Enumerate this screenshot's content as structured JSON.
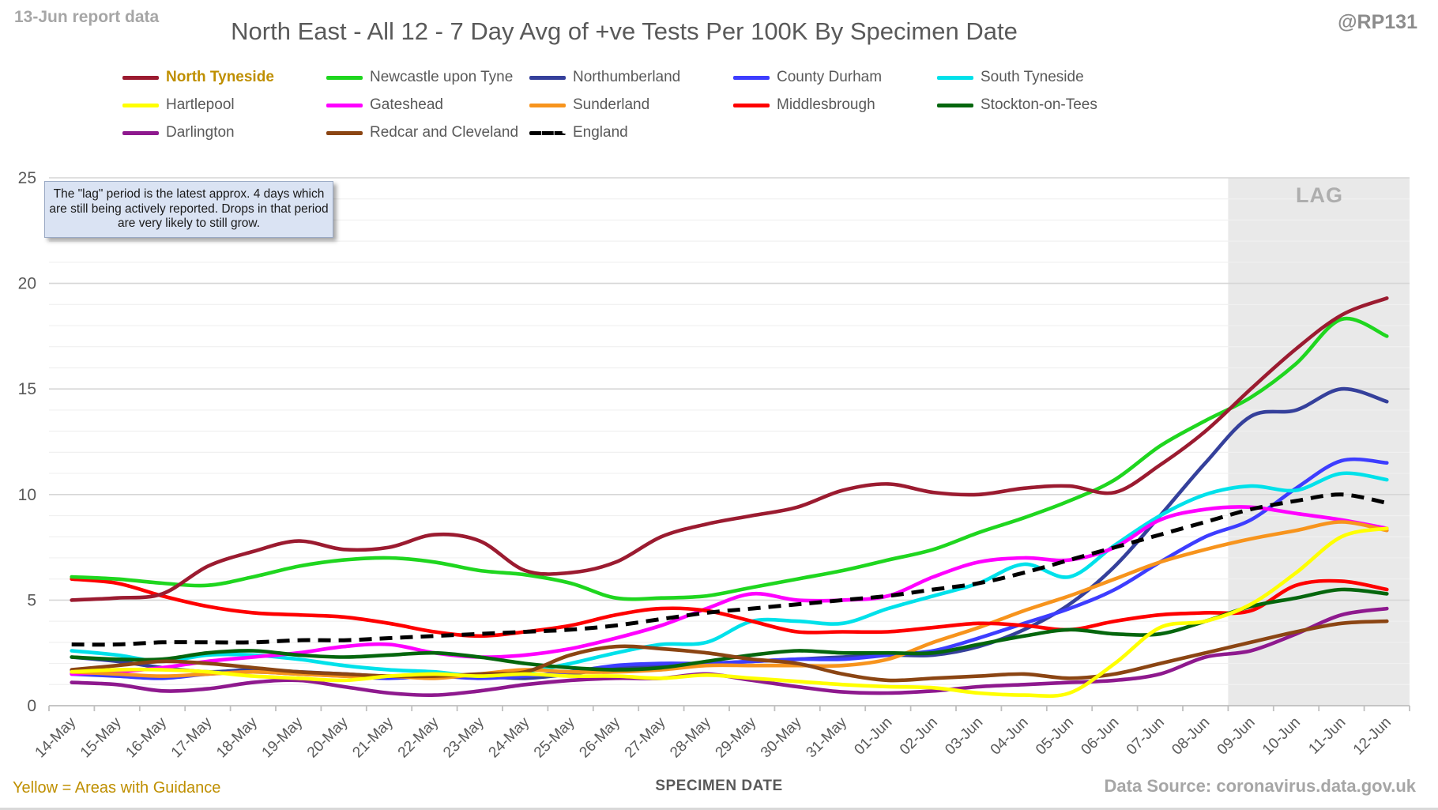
{
  "header": {
    "report_date_label": "13-Jun report data",
    "title": "North East - All 12 - 7 Day Avg of +ve Tests Per 100K By Specimen Date",
    "handle": "@RP131"
  },
  "annotation": {
    "text": "The \"lag\" period is the latest approx. 4 days which are still being actively reported. Drops in that period are very likely to still grow."
  },
  "lag": {
    "label": "LAG"
  },
  "footer": {
    "left_note": "Yellow = Areas with Guidance",
    "x_axis_title": "SPECIMEN DATE",
    "data_source": "Data Source: coronavirus.data.gov.uk"
  },
  "axes": {
    "y_ticks": [
      0,
      5,
      10,
      15,
      20,
      25
    ],
    "y_max": 25,
    "x_title": "SPECIMEN DATE"
  },
  "chart_data": {
    "type": "line",
    "title": "North East - All 12 - 7 Day Avg of +ve Tests Per 100K By Specimen Date",
    "xlabel": "SPECIMEN DATE",
    "ylabel": "",
    "ylim": [
      0,
      25
    ],
    "grid": "minor-1-major-5",
    "legend_position": "top",
    "lag_band": {
      "start_category": "09-Jun",
      "end": "plot-right-edge",
      "label": "LAG"
    },
    "categories": [
      "14-May",
      "15-May",
      "16-May",
      "17-May",
      "18-May",
      "19-May",
      "20-May",
      "21-May",
      "22-May",
      "23-May",
      "24-May",
      "25-May",
      "26-May",
      "27-May",
      "28-May",
      "29-May",
      "30-May",
      "31-May",
      "01-Jun",
      "02-Jun",
      "03-Jun",
      "04-Jun",
      "05-Jun",
      "06-Jun",
      "07-Jun",
      "08-Jun",
      "09-Jun",
      "10-Jun",
      "11-Jun",
      "12-Jun"
    ],
    "series": [
      {
        "name": "North Tyneside",
        "color": "#9b1b30",
        "dash": false,
        "highlight": true,
        "values": [
          5.0,
          5.1,
          5.3,
          6.6,
          7.3,
          7.8,
          7.4,
          7.5,
          8.1,
          7.8,
          6.4,
          6.3,
          6.8,
          8.0,
          8.6,
          9.0,
          9.4,
          10.2,
          10.5,
          10.1,
          10.0,
          10.3,
          10.4,
          10.1,
          11.4,
          13.0,
          15.0,
          16.9,
          18.5,
          19.3
        ]
      },
      {
        "name": "Newcastle upon Tyne",
        "color": "#1fd61f",
        "dash": false,
        "highlight": false,
        "values": [
          6.1,
          6.0,
          5.8,
          5.7,
          6.1,
          6.6,
          6.9,
          7.0,
          6.8,
          6.4,
          6.2,
          5.8,
          5.1,
          5.1,
          5.2,
          5.6,
          6.0,
          6.4,
          6.9,
          7.4,
          8.2,
          8.9,
          9.7,
          10.7,
          12.3,
          13.5,
          14.6,
          16.2,
          18.3,
          17.5
        ]
      },
      {
        "name": "Northumberland",
        "color": "#35409b",
        "dash": false,
        "highlight": false,
        "values": [
          2.3,
          2.1,
          1.8,
          1.6,
          1.7,
          1.6,
          1.5,
          1.4,
          1.5,
          1.4,
          1.3,
          1.5,
          1.8,
          1.9,
          2.0,
          2.1,
          2.2,
          2.3,
          2.4,
          2.4,
          2.8,
          3.6,
          4.8,
          6.6,
          9.0,
          11.5,
          13.7,
          14.0,
          15.0,
          14.4
        ]
      },
      {
        "name": "County Durham",
        "color": "#3d3dff",
        "dash": false,
        "highlight": false,
        "values": [
          1.5,
          1.4,
          1.3,
          1.5,
          1.6,
          1.5,
          1.4,
          1.3,
          1.4,
          1.3,
          1.4,
          1.6,
          1.9,
          2.0,
          2.0,
          2.1,
          2.2,
          2.2,
          2.4,
          2.6,
          3.2,
          3.9,
          4.6,
          5.5,
          6.8,
          8.0,
          8.8,
          10.3,
          11.6,
          11.5
        ]
      },
      {
        "name": "South Tyneside",
        "color": "#00e1ea",
        "dash": false,
        "highlight": false,
        "values": [
          2.6,
          2.4,
          2.1,
          2.4,
          2.4,
          2.2,
          1.9,
          1.7,
          1.6,
          1.4,
          1.6,
          2.0,
          2.5,
          2.9,
          3.0,
          4.0,
          4.0,
          3.9,
          4.6,
          5.2,
          5.8,
          6.7,
          6.1,
          7.6,
          9.0,
          10.0,
          10.4,
          10.2,
          11.0,
          10.7
        ]
      },
      {
        "name": "Hartlepool",
        "color": "#ffff00",
        "dash": false,
        "highlight": false,
        "values": [
          1.6,
          1.7,
          1.7,
          1.6,
          1.4,
          1.3,
          1.2,
          1.4,
          1.5,
          1.4,
          1.5,
          1.4,
          1.4,
          1.3,
          1.45,
          1.3,
          1.15,
          1.0,
          0.9,
          0.85,
          0.6,
          0.5,
          0.6,
          2.0,
          3.7,
          4.0,
          4.8,
          6.3,
          8.0,
          8.4
        ]
      },
      {
        "name": "Gateshead",
        "color": "#ff00ff",
        "dash": false,
        "highlight": false,
        "values": [
          1.5,
          1.6,
          1.8,
          2.1,
          2.3,
          2.5,
          2.8,
          2.9,
          2.5,
          2.3,
          2.4,
          2.7,
          3.2,
          3.8,
          4.6,
          5.3,
          5.0,
          5.0,
          5.2,
          6.1,
          6.8,
          7.0,
          6.9,
          7.5,
          8.8,
          9.3,
          9.4,
          9.1,
          8.8,
          8.4
        ]
      },
      {
        "name": "Sunderland",
        "color": "#f7941d",
        "dash": false,
        "highlight": false,
        "values": [
          1.6,
          1.5,
          1.4,
          1.5,
          1.6,
          1.5,
          1.4,
          1.4,
          1.3,
          1.5,
          1.7,
          1.6,
          1.6,
          1.7,
          1.9,
          1.9,
          1.9,
          1.9,
          2.2,
          3.0,
          3.7,
          4.5,
          5.2,
          6.0,
          6.8,
          7.4,
          7.9,
          8.3,
          8.7,
          8.3
        ]
      },
      {
        "name": "Middlesbrough",
        "color": "#fe0000",
        "dash": false,
        "highlight": false,
        "values": [
          6.0,
          5.8,
          5.2,
          4.7,
          4.4,
          4.3,
          4.2,
          3.9,
          3.5,
          3.3,
          3.5,
          3.8,
          4.3,
          4.6,
          4.5,
          4.0,
          3.5,
          3.5,
          3.5,
          3.7,
          3.9,
          3.8,
          3.6,
          4.0,
          4.3,
          4.4,
          4.5,
          5.7,
          5.9,
          5.5
        ]
      },
      {
        "name": "Stockton-on-Tees",
        "color": "#05660d",
        "dash": false,
        "highlight": false,
        "values": [
          2.3,
          2.2,
          2.2,
          2.5,
          2.6,
          2.4,
          2.3,
          2.4,
          2.5,
          2.3,
          2.0,
          1.8,
          1.7,
          1.8,
          2.1,
          2.4,
          2.6,
          2.5,
          2.5,
          2.5,
          2.9,
          3.3,
          3.6,
          3.4,
          3.4,
          4.0,
          4.7,
          5.1,
          5.5,
          5.3
        ]
      },
      {
        "name": "Darlington",
        "color": "#8e198e",
        "dash": false,
        "highlight": false,
        "values": [
          1.1,
          1.0,
          0.7,
          0.8,
          1.1,
          1.2,
          0.9,
          0.6,
          0.5,
          0.7,
          1.0,
          1.2,
          1.3,
          1.3,
          1.5,
          1.2,
          0.9,
          0.65,
          0.6,
          0.7,
          0.9,
          1.0,
          1.1,
          1.2,
          1.5,
          2.3,
          2.6,
          3.4,
          4.3,
          4.6
        ]
      },
      {
        "name": "Redcar and Cleveland",
        "color": "#8b4513",
        "dash": false,
        "highlight": false,
        "values": [
          1.7,
          1.9,
          2.1,
          2.0,
          1.8,
          1.6,
          1.5,
          1.4,
          1.4,
          1.5,
          1.6,
          2.4,
          2.8,
          2.7,
          2.5,
          2.2,
          2.0,
          1.5,
          1.2,
          1.3,
          1.4,
          1.5,
          1.3,
          1.5,
          2.0,
          2.5,
          3.0,
          3.5,
          3.9,
          4.0
        ]
      },
      {
        "name": "England",
        "color": "#000000",
        "dash": true,
        "highlight": false,
        "values": [
          2.9,
          2.9,
          3.0,
          3.0,
          3.0,
          3.1,
          3.1,
          3.2,
          3.3,
          3.4,
          3.5,
          3.6,
          3.8,
          4.1,
          4.4,
          4.6,
          4.8,
          5.0,
          5.2,
          5.5,
          5.8,
          6.3,
          6.9,
          7.5,
          8.1,
          8.7,
          9.3,
          9.7,
          10.0,
          9.6
        ]
      }
    ]
  },
  "colors": {
    "title_text": "#595959",
    "muted_text": "#a6a6a6",
    "gold_text": "#bf8f00",
    "major_grid": "#d6d6d6",
    "minor_grid": "#f0f0f0",
    "axis_line": "#c0c0c0",
    "lag_band": "#e9e9e9",
    "annotation_bg": "#dae3f3"
  }
}
